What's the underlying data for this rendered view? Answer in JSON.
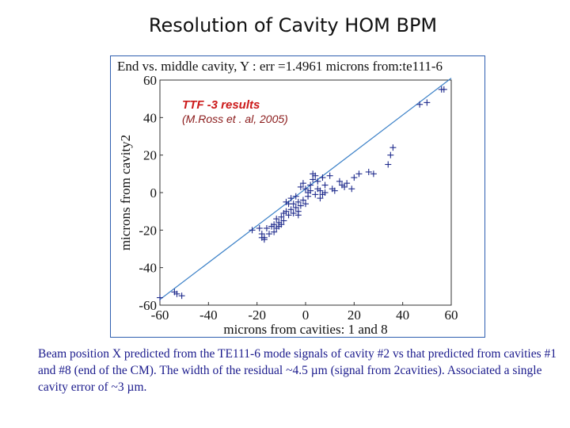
{
  "slide": {
    "title": "Resolution of Cavity HOM BPM"
  },
  "colors": {
    "fit_line": "#3d82c8",
    "markers": "#1e2a8c",
    "annotation_main": "#cc1a1a",
    "annotation_sub": "#8a1a1a",
    "caption": "#1a1a8c",
    "frame": "#2f5fb0"
  },
  "chart_data": {
    "type": "scatter",
    "title": "End vs. middle cavity, Y  : err =1.4961 microns  from:te111-6",
    "xlabel": "microns  from cavities: 1 and 8",
    "ylabel": "microns  from cavity2",
    "xlim": [
      -60,
      60
    ],
    "ylim": [
      -60,
      60
    ],
    "xticks": [
      -60,
      -40,
      -20,
      0,
      20,
      40,
      60
    ],
    "yticks": [
      60,
      40,
      20,
      0,
      -20,
      -40,
      -60
    ],
    "xtick_labels": [
      "-60",
      "-40",
      "-20",
      "0",
      "20",
      "40",
      "60"
    ],
    "ytick_labels": [
      "60",
      "40",
      "20",
      "0",
      "-20",
      "-40",
      "-60"
    ],
    "fit_line": {
      "x": [
        -60,
        60
      ],
      "y": [
        -57,
        61
      ]
    },
    "annotation": {
      "line1": "TTF -3 results",
      "line2": "(M.Ross et . al, 2005)"
    },
    "points": [
      [
        -60,
        -56
      ],
      [
        -54,
        -53
      ],
      [
        -53,
        -54
      ],
      [
        -51,
        -55
      ],
      [
        -22,
        -20
      ],
      [
        -19,
        -19
      ],
      [
        -18,
        -22
      ],
      [
        -18,
        -24
      ],
      [
        -17,
        -25
      ],
      [
        -17,
        -24
      ],
      [
        -16,
        -19
      ],
      [
        -15,
        -22
      ],
      [
        -14,
        -18
      ],
      [
        -13,
        -17
      ],
      [
        -13,
        -21
      ],
      [
        -12,
        -14
      ],
      [
        -12,
        -19
      ],
      [
        -11,
        -16
      ],
      [
        -11,
        -18
      ],
      [
        -10,
        -13
      ],
      [
        -10,
        -17
      ],
      [
        -9,
        -11
      ],
      [
        -9,
        -15
      ],
      [
        -8,
        -5
      ],
      [
        -8,
        -10
      ],
      [
        -7,
        -12
      ],
      [
        -7,
        -6
      ],
      [
        -6,
        -3
      ],
      [
        -6,
        -9
      ],
      [
        -5,
        -6
      ],
      [
        -5,
        -11
      ],
      [
        -4,
        -2
      ],
      [
        -4,
        -8
      ],
      [
        -3,
        -5
      ],
      [
        -3,
        -10
      ],
      [
        -3,
        -12
      ],
      [
        -2,
        -7
      ],
      [
        -2,
        3
      ],
      [
        -1,
        5
      ],
      [
        -1,
        -4
      ],
      [
        0,
        2
      ],
      [
        0,
        -6
      ],
      [
        1,
        0
      ],
      [
        1,
        -2
      ],
      [
        2,
        1
      ],
      [
        2,
        4
      ],
      [
        3,
        7
      ],
      [
        3,
        10
      ],
      [
        4,
        -1
      ],
      [
        4,
        9
      ],
      [
        5,
        6
      ],
      [
        5,
        2
      ],
      [
        6,
        -3
      ],
      [
        6,
        1
      ],
      [
        7,
        8
      ],
      [
        7,
        -1
      ],
      [
        8,
        0
      ],
      [
        8,
        4
      ],
      [
        10,
        9
      ],
      [
        11,
        2
      ],
      [
        12,
        1
      ],
      [
        14,
        6
      ],
      [
        15,
        4
      ],
      [
        16,
        3
      ],
      [
        17,
        5
      ],
      [
        19,
        2
      ],
      [
        20,
        8
      ],
      [
        22,
        10
      ],
      [
        26,
        11
      ],
      [
        28,
        10
      ],
      [
        34,
        15
      ],
      [
        35,
        20
      ],
      [
        36,
        24
      ],
      [
        47,
        47
      ],
      [
        50,
        48
      ],
      [
        56,
        55
      ],
      [
        57,
        55
      ]
    ]
  },
  "caption": {
    "text": "Beam position X predicted from the TE111-6 mode signals of cavity #2 vs that predicted from cavities #1 and #8 (end of the CM). The width of the residual ~4.5 µm (signal from 2cavities). Associated a single cavity error of ~3 µm."
  }
}
